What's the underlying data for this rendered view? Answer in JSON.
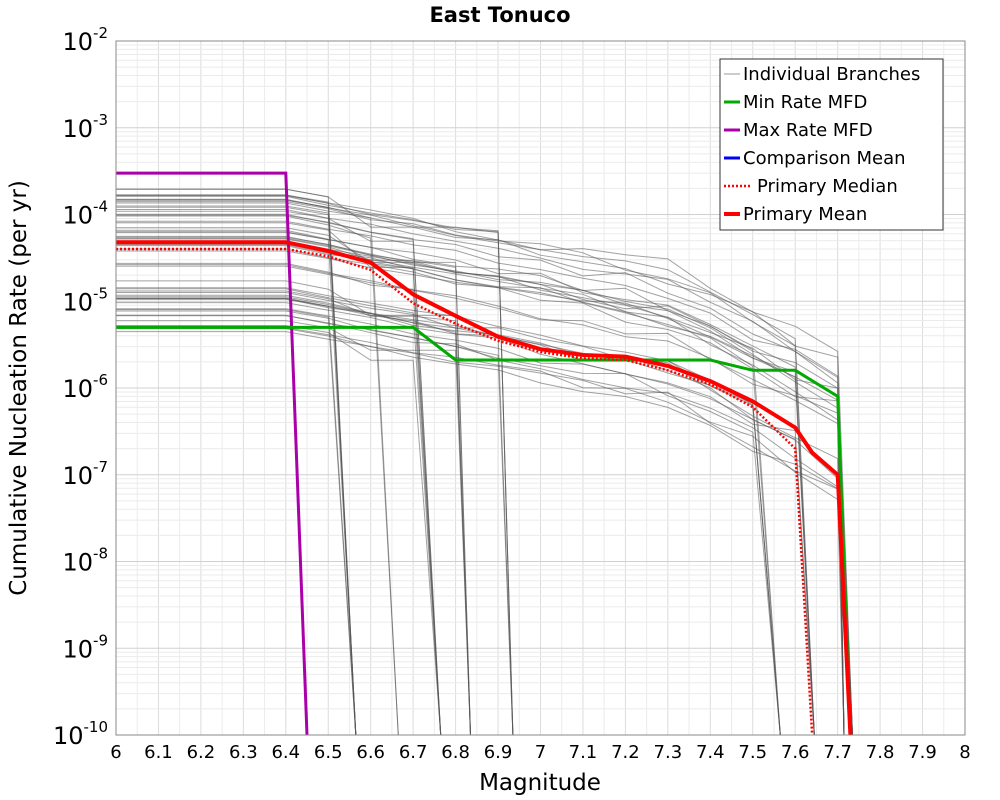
{
  "chart_data": {
    "type": "line",
    "title": "East Tonuco",
    "xlabel": "Magnitude",
    "ylabel": "Cumulative Nucleation Rate (per yr)",
    "xlim": [
      6,
      8
    ],
    "ylim": [
      1e-10,
      0.01
    ],
    "yscale": "log",
    "grid": true,
    "legend_position": "top-right",
    "x_ticks": [
      "6",
      "6.1",
      "6.2",
      "6.3",
      "6.4",
      "6.5",
      "6.6",
      "6.7",
      "6.8",
      "6.9",
      "7",
      "7.1",
      "7.2",
      "7.3",
      "7.4",
      "7.5",
      "7.6",
      "7.7",
      "7.8",
      "7.9",
      "8"
    ],
    "y_ticks": [
      {
        "base": "10",
        "exp": "-2",
        "value": 0.01
      },
      {
        "base": "10",
        "exp": "-3",
        "value": 0.001
      },
      {
        "base": "10",
        "exp": "-4",
        "value": 0.0001
      },
      {
        "base": "10",
        "exp": "-5",
        "value": 1e-05
      },
      {
        "base": "10",
        "exp": "-6",
        "value": 1e-06
      },
      {
        "base": "10",
        "exp": "-7",
        "value": 1e-07
      },
      {
        "base": "10",
        "exp": "-8",
        "value": 1e-08
      },
      {
        "base": "10",
        "exp": "-9",
        "value": 1e-09
      },
      {
        "base": "10",
        "exp": "-10",
        "value": 1e-10
      }
    ],
    "individual_branches": {
      "name": "Individual Branches",
      "color": "#555555",
      "approx_count": 60,
      "note_visible": "many gray branch curves spanning roughly 4e-6 to 2e-4 at M6.0"
    },
    "series": [
      {
        "name": "Min Rate MFD",
        "color": "#00aa00",
        "style": "solid",
        "x": [
          6.0,
          6.4,
          6.5,
          6.6,
          6.7,
          6.8,
          6.9,
          7.0,
          7.1,
          7.2,
          7.3,
          7.4,
          7.5,
          7.6,
          7.7,
          7.73
        ],
        "y": [
          5e-06,
          5e-06,
          5e-06,
          5e-06,
          5e-06,
          2.1e-06,
          2.1e-06,
          2.1e-06,
          2.1e-06,
          2.1e-06,
          2.1e-06,
          2.1e-06,
          1.6e-06,
          1.6e-06,
          8e-07,
          1e-10
        ]
      },
      {
        "name": "Max Rate MFD",
        "color": "#aa00aa",
        "style": "solid",
        "x": [
          6.0,
          6.4,
          6.45
        ],
        "y": [
          0.0003,
          0.0003,
          1e-10
        ]
      },
      {
        "name": "Comparison Mean",
        "color": "#0000ff",
        "style": "solid",
        "x": [],
        "y": []
      },
      {
        "name": "Primary Median",
        "color": "#ff0000",
        "style": "dotted",
        "x": [
          6.0,
          6.4,
          6.5,
          6.6,
          6.7,
          6.8,
          6.9,
          7.0,
          7.1,
          7.2,
          7.3,
          7.4,
          7.5,
          7.6,
          7.64
        ],
        "y": [
          4e-05,
          4e-05,
          3.3e-05,
          2.3e-05,
          9.5e-06,
          5.5e-06,
          3.5e-06,
          2.6e-06,
          2.2e-06,
          2.1e-06,
          1.6e-06,
          1.1e-06,
          6e-07,
          2e-07,
          1e-10
        ]
      },
      {
        "name": "Primary Mean",
        "color": "#ff0000",
        "style": "solid",
        "x": [
          6.0,
          6.4,
          6.5,
          6.6,
          6.7,
          6.8,
          6.9,
          7.0,
          7.1,
          7.2,
          7.3,
          7.4,
          7.5,
          7.6,
          7.64,
          7.7,
          7.73
        ],
        "y": [
          4.8e-05,
          4.8e-05,
          3.8e-05,
          2.8e-05,
          1.2e-05,
          6.8e-06,
          3.9e-06,
          2.8e-06,
          2.4e-06,
          2.3e-06,
          1.8e-06,
          1.2e-06,
          7e-07,
          3.5e-07,
          1.8e-07,
          1e-07,
          1e-10
        ]
      }
    ],
    "legend": [
      {
        "label": "Individual Branches",
        "color": "#999999",
        "style": "thin"
      },
      {
        "label": "Min Rate MFD",
        "color": "#00aa00",
        "style": "solid"
      },
      {
        "label": "Max Rate MFD",
        "color": "#aa00aa",
        "style": "solid"
      },
      {
        "label": "Comparison Mean",
        "color": "#0000ff",
        "style": "solid"
      },
      {
        "label": "Primary Median",
        "color": "#ff0000",
        "style": "dotted"
      },
      {
        "label": "Primary Mean",
        "color": "#ff0000",
        "style": "thick"
      }
    ]
  }
}
